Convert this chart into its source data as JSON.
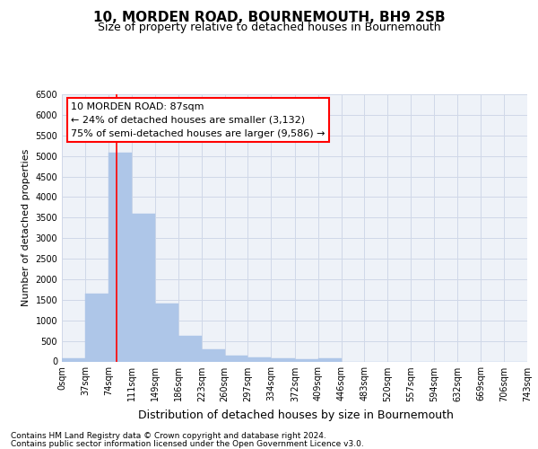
{
  "title": "10, MORDEN ROAD, BOURNEMOUTH, BH9 2SB",
  "subtitle": "Size of property relative to detached houses in Bournemouth",
  "xlabel": "Distribution of detached houses by size in Bournemouth",
  "ylabel": "Number of detached properties",
  "bin_edges": [
    0,
    37,
    74,
    111,
    149,
    186,
    223,
    260,
    297,
    334,
    372,
    409,
    446,
    483,
    520,
    557,
    594,
    632,
    669,
    706,
    743
  ],
  "bar_heights": [
    75,
    1650,
    5080,
    3600,
    1420,
    620,
    290,
    140,
    105,
    75,
    55,
    75,
    0,
    0,
    0,
    0,
    0,
    0,
    0,
    0
  ],
  "bar_color": "#aec6e8",
  "bar_edgecolor": "#aec6e8",
  "grid_color": "#d0d8e8",
  "background_color": "#eef2f8",
  "red_line_x": 87,
  "annotation_line1": "10 MORDEN ROAD: 87sqm",
  "annotation_line2": "← 24% of detached houses are smaller (3,132)",
  "annotation_line3": "75% of semi-detached houses are larger (9,586) →",
  "ylim": [
    0,
    6500
  ],
  "yticks": [
    0,
    500,
    1000,
    1500,
    2000,
    2500,
    3000,
    3500,
    4000,
    4500,
    5000,
    5500,
    6000,
    6500
  ],
  "footer_line1": "Contains HM Land Registry data © Crown copyright and database right 2024.",
  "footer_line2": "Contains public sector information licensed under the Open Government Licence v3.0.",
  "title_fontsize": 11,
  "subtitle_fontsize": 9,
  "tick_label_fontsize": 7,
  "ylabel_fontsize": 8,
  "xlabel_fontsize": 9,
  "annotation_fontsize": 8,
  "footer_fontsize": 6.5
}
